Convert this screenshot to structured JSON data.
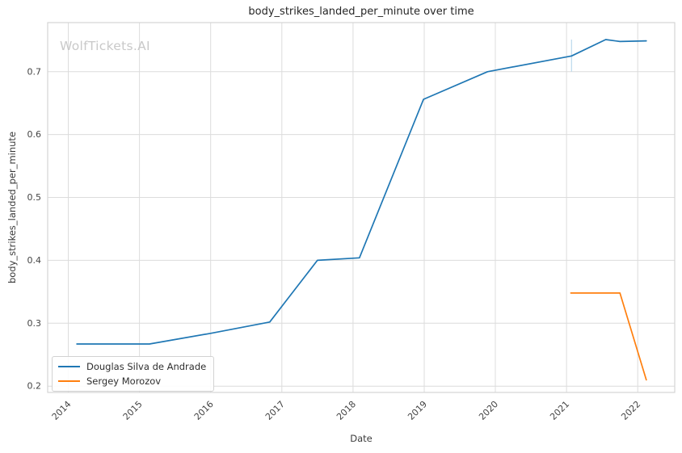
{
  "watermark": "WolfTickets.AI",
  "chart_data": {
    "type": "line",
    "title": "body_strikes_landed_per_minute over time",
    "xlabel": "Date",
    "ylabel": "body_strikes_landed_per_minute",
    "xlim": [
      2013.71,
      2022.52
    ],
    "ylim": [
      0.19,
      0.778
    ],
    "xticks": [
      2014,
      2015,
      2016,
      2017,
      2018,
      2019,
      2020,
      2021,
      2022
    ],
    "yticks": [
      0.2,
      0.3,
      0.4,
      0.5,
      0.6,
      0.7
    ],
    "grid": true,
    "legend_position": "lower left",
    "series": [
      {
        "name": "Douglas Silva de Andrade",
        "color": "#1f77b4",
        "x": [
          2014.12,
          2015.14,
          2016.0,
          2016.83,
          2017.5,
          2018.09,
          2018.99,
          2019.89,
          2021.07,
          2021.55,
          2021.75,
          2022.12
        ],
        "y": [
          0.267,
          0.267,
          0.284,
          0.302,
          0.4,
          0.404,
          0.656,
          0.7,
          0.725,
          0.751,
          0.748,
          0.749
        ]
      },
      {
        "name": "Sergey Morozov",
        "color": "#ff7f0e",
        "x": [
          2021.06,
          2021.75,
          2022.12
        ],
        "y": [
          0.348,
          0.348,
          0.21
        ]
      }
    ],
    "annotations": [
      {
        "type": "vertical-segment",
        "x": 2021.07,
        "y_from": 0.7,
        "y_to": 0.751,
        "color": "#bcd9ec"
      }
    ]
  },
  "style_colors": {
    "grid": "#dcdcdc",
    "spine": "#d4d4d4",
    "tick_label": "#444444"
  }
}
